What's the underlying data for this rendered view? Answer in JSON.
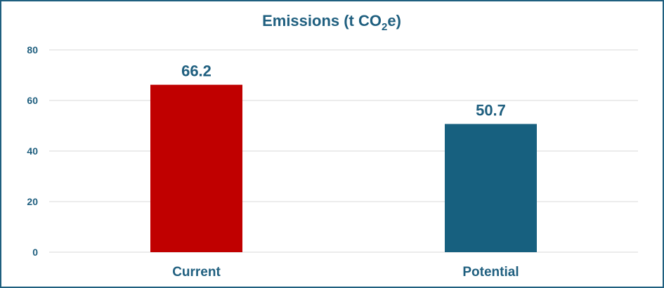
{
  "chart_data": {
    "type": "bar",
    "title": "Emissions (t CO",
    "title_subscript": "2",
    "title_suffix": "e)",
    "categories": [
      "Current",
      "Potential"
    ],
    "values": [
      66.2,
      50.7
    ],
    "data_labels": [
      "66.2",
      "50.7"
    ],
    "bar_colors": [
      "#c00000",
      "#17607f"
    ],
    "ylim": [
      0,
      80
    ],
    "yticks": [
      0,
      20,
      40,
      60,
      80
    ],
    "grid": true,
    "legend": "none",
    "text_color": "#1f5f7f",
    "grid_color": "#d9d9d9"
  }
}
